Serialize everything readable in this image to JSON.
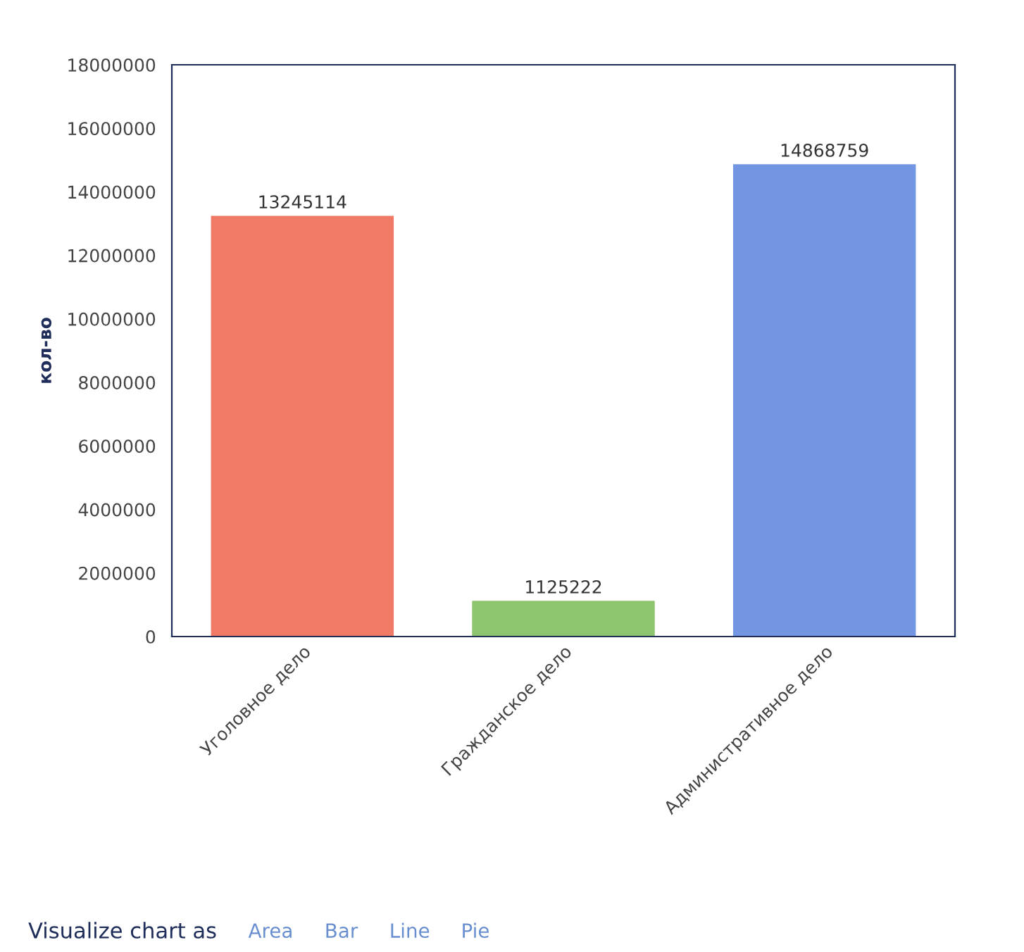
{
  "chart_data": {
    "type": "bar",
    "categories": [
      "Уголовное дело",
      "Гражданское дело",
      "Административное дело"
    ],
    "values": [
      13245114,
      1125222,
      14868759
    ],
    "colors": [
      "#f07a66",
      "#8fc46e",
      "#7396e2"
    ],
    "ylabel": "кол-во",
    "ylim": [
      0,
      18000000
    ],
    "yticks": [
      0,
      2000000,
      4000000,
      6000000,
      8000000,
      10000000,
      12000000,
      14000000,
      16000000,
      18000000
    ],
    "data_labels": true,
    "grid": false,
    "annotations": [
      "Visualize chart as",
      "Area",
      "Bar",
      "Line",
      "Pie"
    ]
  }
}
